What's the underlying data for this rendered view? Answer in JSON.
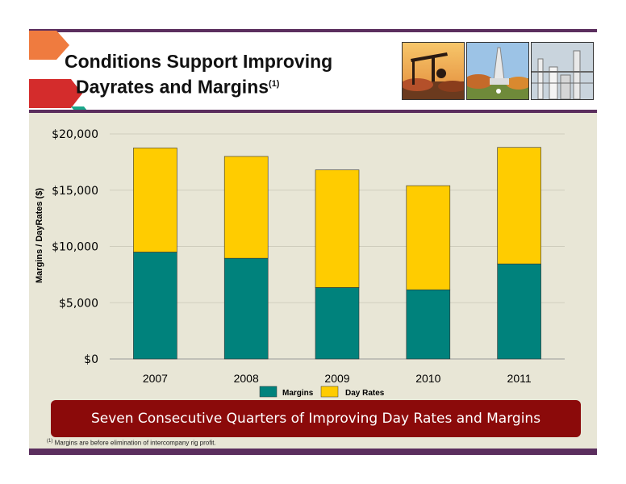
{
  "header": {
    "title_line1": "Conditions Support Improving",
    "title_line2": "Dayrates and Margins",
    "title_footnote_ref": "(1)",
    "photos": [
      "pumpjack-photo",
      "drilling-rig-photo",
      "gas-plant-photo"
    ]
  },
  "colors": {
    "accent_purple": "#5b2e5e",
    "margins": "#00827c",
    "day_rates": "#ffcc00",
    "banner": "#8b0a0a",
    "panel": "#e8e6d6"
  },
  "chart_data": {
    "type": "bar",
    "stacked": true,
    "categories": [
      "2007",
      "2008",
      "2009",
      "2010",
      "2011"
    ],
    "series": [
      {
        "name": "Margins",
        "values": [
          9500,
          8950,
          6350,
          6150,
          8450
        ]
      },
      {
        "name": "Day Rates",
        "values": [
          9250,
          9050,
          10450,
          9250,
          10350
        ]
      }
    ],
    "totals": [
      18750,
      18000,
      16800,
      15400,
      18800
    ],
    "ylabel": "Margins /  DayRates ($)",
    "yticks": [
      "$0",
      "$5,000",
      "$10,000",
      "$15,000",
      "$20,000"
    ],
    "ylim": [
      0,
      20000
    ],
    "grid": true,
    "legend_position": "bottom"
  },
  "banner": {
    "text": "Seven Consecutive Quarters of Improving Day Rates and Margins"
  },
  "footnote": {
    "ref": "(1)",
    "text": " Margins are before elimination of intercompany rig profit."
  }
}
